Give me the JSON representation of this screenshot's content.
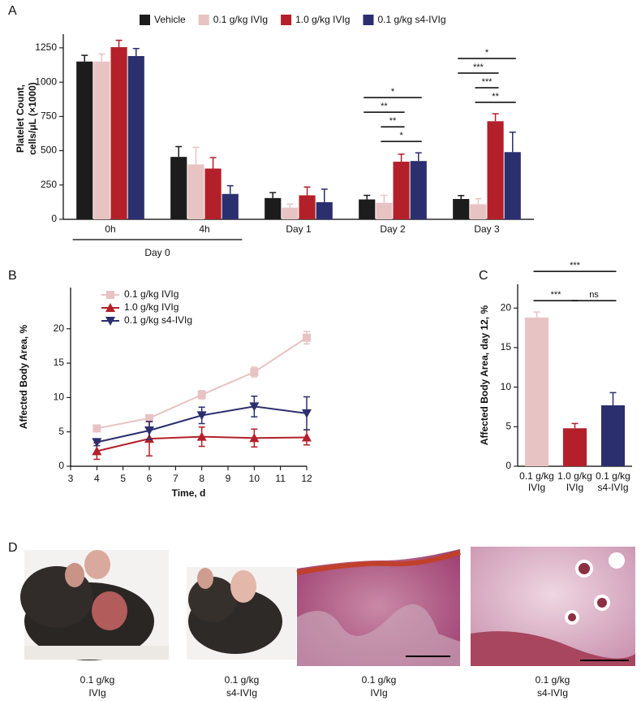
{
  "chart_data": [
    {
      "type": "bar",
      "panel": "A",
      "ylabel": [
        "Platelet Count,",
        "cells/μL (×1000)"
      ],
      "categories": [
        "0h",
        "4h",
        "Day 1",
        "Day 2",
        "Day 3"
      ],
      "category_groups": [
        {
          "label": "Day 0",
          "categories": [
            "0h",
            "4h"
          ]
        }
      ],
      "series": [
        {
          "name": "Vehicle",
          "color": "#1c1c1c",
          "values": [
            1150,
            455,
            155,
            145,
            148
          ],
          "errors": [
            45,
            75,
            40,
            30,
            25
          ]
        },
        {
          "name": "0.1 g/kg IVIg",
          "color": "#e8c3c3",
          "values": [
            1150,
            400,
            85,
            120,
            110
          ],
          "errors": [
            55,
            125,
            25,
            55,
            40
          ]
        },
        {
          "name": "1.0 g/kg IVIg",
          "color": "#b3202a",
          "values": [
            1255,
            370,
            175,
            420,
            715
          ],
          "errors": [
            50,
            80,
            60,
            55,
            55
          ]
        },
        {
          "name": "0.1 g/kg s4-IVIg",
          "color": "#2b2f6e",
          "values": [
            1190,
            185,
            125,
            425,
            490
          ],
          "errors": [
            55,
            60,
            95,
            60,
            145
          ]
        }
      ],
      "annotations": [
        {
          "category": "Day 2",
          "from": "0.1 g/kg IVIg",
          "to": "0.1 g/kg s4-IVIg",
          "text": "*"
        },
        {
          "category": "Day 2",
          "from": "0.1 g/kg IVIg",
          "to": "1.0 g/kg IVIg",
          "text": "**"
        },
        {
          "category": "Day 2",
          "from": "Vehicle",
          "to": "1.0 g/kg IVIg",
          "text": "**"
        },
        {
          "category": "Day 2",
          "from": "Vehicle",
          "to": "0.1 g/kg s4-IVIg",
          "text": "*"
        },
        {
          "category": "Day 3",
          "from": "0.1 g/kg IVIg",
          "to": "0.1 g/kg s4-IVIg",
          "text": "**"
        },
        {
          "category": "Day 3",
          "from": "0.1 g/kg IVIg",
          "to": "1.0 g/kg IVIg",
          "text": "***"
        },
        {
          "category": "Day 3",
          "from": "Vehicle",
          "to": "1.0 g/kg IVIg",
          "text": "***"
        },
        {
          "category": "Day 3",
          "from": "Vehicle",
          "to": "0.1 g/kg s4-IVIg",
          "text": "*"
        }
      ],
      "ylim": [
        0,
        1350
      ],
      "yticks": [
        0,
        250,
        500,
        750,
        1000,
        1250
      ],
      "legend": "top"
    },
    {
      "type": "line",
      "panel": "B",
      "xlabel": "Time, d",
      "ylabel": "Affected Body Area, %",
      "x": [
        4,
        6,
        8,
        10,
        12
      ],
      "series": [
        {
          "name": "0.1 g/kg IVIg",
          "color": "#e8c3c3",
          "marker": "square",
          "values": [
            5.5,
            7.0,
            10.4,
            13.7,
            18.7
          ],
          "errors": [
            0.3,
            0.3,
            0.6,
            0.7,
            0.9
          ]
        },
        {
          "name": "1.0 g/kg IVIg",
          "color": "#b3202a",
          "marker": "triangle-up",
          "values": [
            2.2,
            4.0,
            4.3,
            4.1,
            4.2
          ],
          "errors": [
            1.2,
            2.5,
            1.4,
            1.3,
            1.1
          ]
        },
        {
          "name": "0.1 g/kg s4-IVIg",
          "color": "#2b2f6e",
          "marker": "triangle-down",
          "values": [
            3.5,
            5.2,
            7.4,
            8.7,
            7.7
          ],
          "errors": [
            0.5,
            1.3,
            1.2,
            1.5,
            2.4
          ]
        }
      ],
      "xlim": [
        3,
        12
      ],
      "xticks": [
        3,
        4,
        5,
        6,
        7,
        8,
        9,
        10,
        11,
        12
      ],
      "ylim": [
        0,
        26
      ],
      "yticks": [
        0,
        5,
        10,
        15,
        20
      ],
      "legend": "upper left"
    },
    {
      "type": "bar",
      "panel": "C",
      "ylabel": "Affected Body Area, day 12, %",
      "categories": [
        [
          "0.1 g/kg",
          "IVIg"
        ],
        [
          "1.0 g/kg",
          "IVIg"
        ],
        [
          "0.1 g/kg",
          "s4-IVIg"
        ]
      ],
      "values": [
        18.8,
        4.8,
        7.7
      ],
      "errors": [
        0.7,
        0.6,
        1.6
      ],
      "colors": [
        "#e8c3c3",
        "#b3202a",
        "#2b2f6e"
      ],
      "annotations": [
        {
          "from": 0,
          "to": 1,
          "text": "***"
        },
        {
          "from": 1,
          "to": 2,
          "text": "ns"
        },
        {
          "from": 0,
          "to": 2,
          "text": "***"
        }
      ],
      "ylim": [
        0,
        23
      ],
      "yticks": [
        0,
        5,
        10,
        15,
        20
      ]
    }
  ],
  "panel_d": {
    "panel": "D",
    "captions": [
      [
        "0.1 g/kg",
        "IVIg"
      ],
      [
        "0.1 g/kg",
        "s4-IVIg"
      ],
      [
        "0.1 g/kg",
        "IVIg"
      ],
      [
        "0.1 g/kg",
        "s4-IVIg"
      ]
    ]
  }
}
